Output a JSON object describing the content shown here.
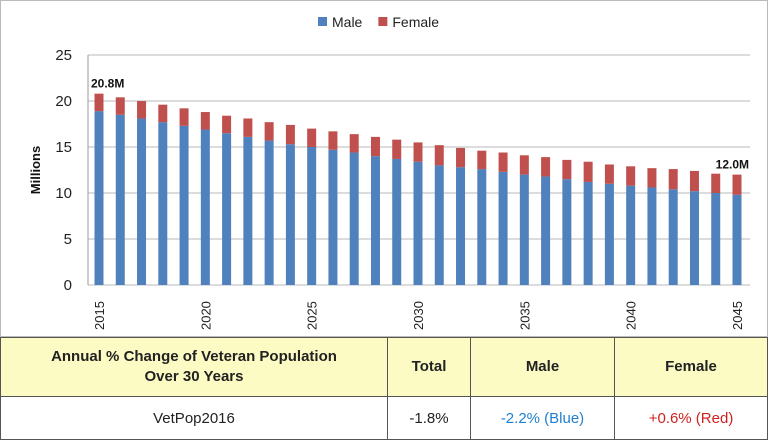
{
  "chart_data": {
    "type": "bar",
    "stacked": true,
    "ylabel": "Millions",
    "ylim": [
      0,
      25
    ],
    "yticks": [
      0,
      5,
      10,
      15,
      20,
      25
    ],
    "xtick_labels": [
      "2015",
      "2020",
      "2025",
      "2030",
      "2035",
      "2040",
      "2045"
    ],
    "grid": true,
    "legend_position": "top",
    "categories": [
      2015,
      2016,
      2017,
      2018,
      2019,
      2020,
      2021,
      2022,
      2023,
      2024,
      2025,
      2026,
      2027,
      2028,
      2029,
      2030,
      2031,
      2032,
      2033,
      2034,
      2035,
      2036,
      2037,
      2038,
      2039,
      2040,
      2041,
      2042,
      2043,
      2044,
      2045
    ],
    "series": [
      {
        "name": "Male",
        "color": "#4f81bd",
        "values": [
          18.9,
          18.5,
          18.1,
          17.7,
          17.3,
          16.9,
          16.5,
          16.1,
          15.7,
          15.3,
          15.0,
          14.7,
          14.4,
          14.0,
          13.7,
          13.4,
          13.0,
          12.8,
          12.6,
          12.3,
          12.0,
          11.8,
          11.5,
          11.2,
          11.0,
          10.8,
          10.6,
          10.4,
          10.2,
          10.0,
          9.8
        ]
      },
      {
        "name": "Female",
        "color": "#c0504d",
        "values": [
          1.9,
          1.9,
          1.9,
          1.9,
          1.9,
          1.9,
          1.9,
          2.0,
          2.0,
          2.1,
          2.0,
          2.0,
          2.0,
          2.1,
          2.1,
          2.1,
          2.2,
          2.1,
          2.0,
          2.1,
          2.1,
          2.1,
          2.1,
          2.2,
          2.1,
          2.1,
          2.1,
          2.2,
          2.2,
          2.1,
          2.2
        ]
      }
    ],
    "annotations": [
      {
        "category": 2015,
        "text": "20.8M"
      },
      {
        "category": 2045,
        "text": "12.0M"
      }
    ]
  },
  "table": {
    "headers": [
      "Annual % Change of Veteran Population",
      "Over 30 Years",
      "Total",
      "Male",
      "Female"
    ],
    "row": {
      "label": "VetPop2016",
      "total": "-1.8%",
      "male": "-2.2% (Blue)",
      "female": "+0.6% (Red)"
    },
    "colors": {
      "male": "#1f7fd0",
      "female": "#d02020"
    }
  }
}
